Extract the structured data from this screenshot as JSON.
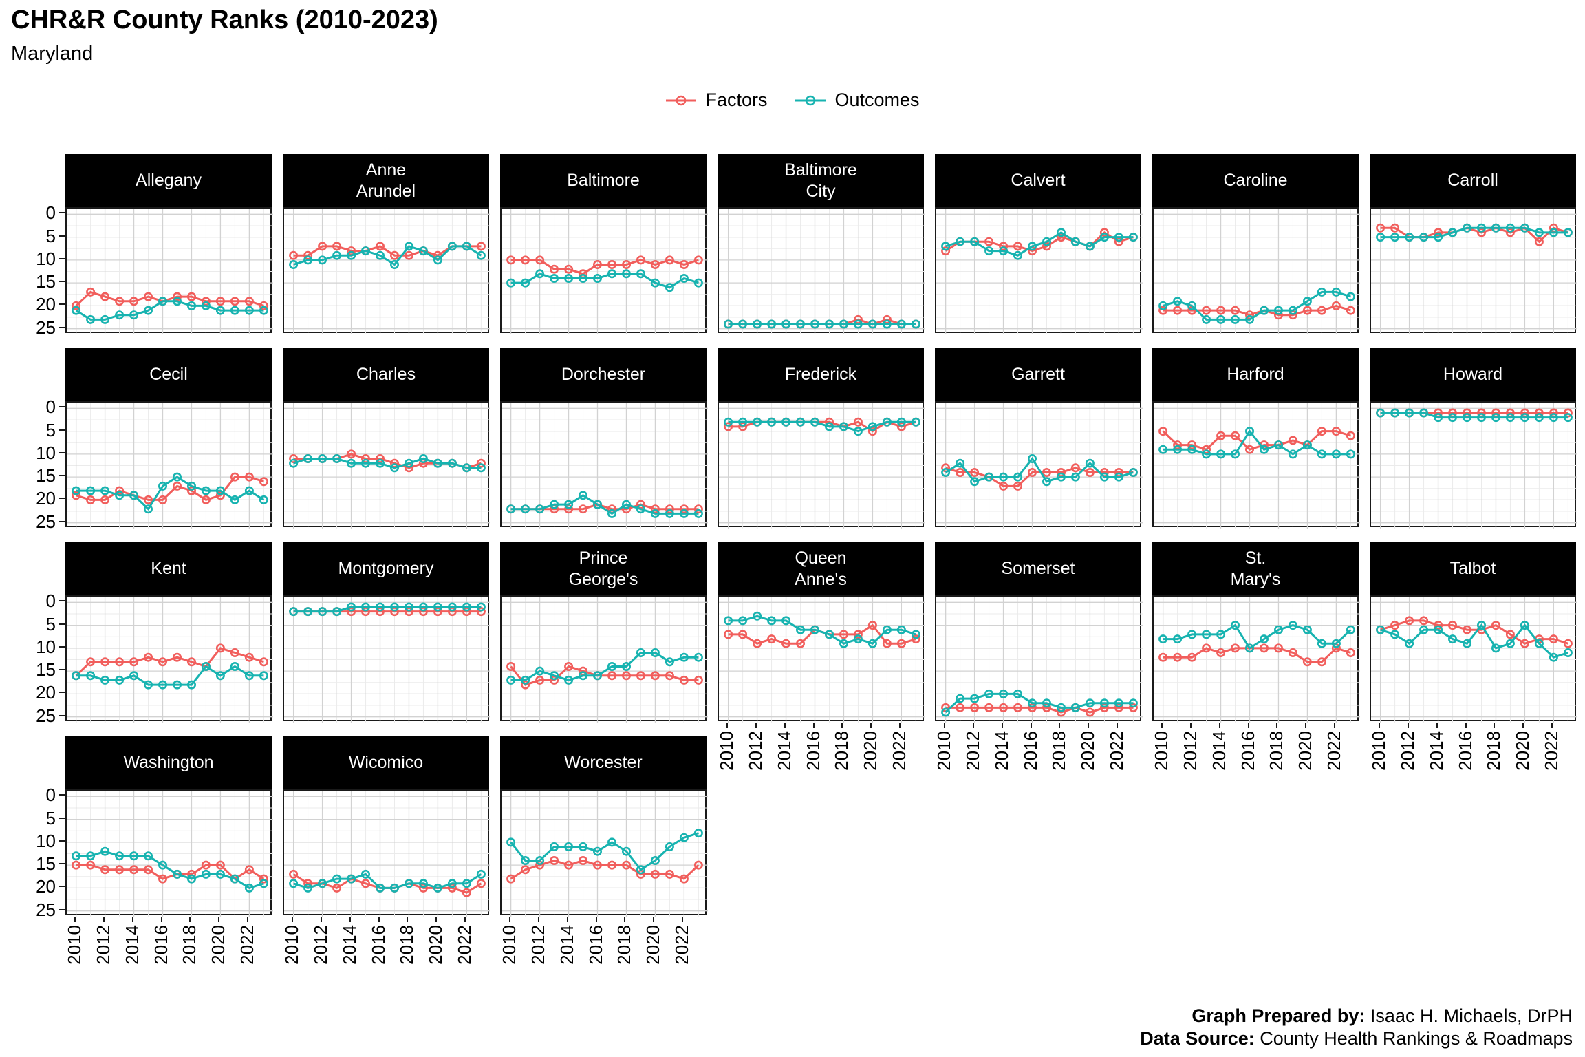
{
  "header": {
    "title": "CHR&R County Ranks (2010-2023)",
    "subtitle": "Maryland"
  },
  "legend": {
    "items": [
      {
        "label": "Factors",
        "color": "#F15E5C"
      },
      {
        "label": "Outcomes",
        "color": "#17B3B0"
      }
    ]
  },
  "footer": {
    "prepared_by_label": "Graph Prepared by:",
    "prepared_by_value": " Isaac H. Michaels, DrPH",
    "source_label": "Data Source:",
    "source_value": " County Health Rankings & Roadmaps"
  },
  "chart_data": {
    "type": "line",
    "title": "CHR&R County Ranks (2010-2023)",
    "subtitle": "Maryland",
    "x": [
      2010,
      2011,
      2012,
      2013,
      2014,
      2015,
      2016,
      2017,
      2018,
      2019,
      2020,
      2021,
      2022,
      2023
    ],
    "x_ticks": [
      2010,
      2012,
      2014,
      2016,
      2018,
      2020,
      2022
    ],
    "y_ticks": [
      0,
      5,
      10,
      15,
      20,
      25
    ],
    "ylim": [
      0,
      25
    ],
    "y_inverted_rank_axis": true,
    "grid": "on",
    "legend_position": "top",
    "series_names": [
      "Factors",
      "Outcomes"
    ],
    "colors": {
      "factors": "#F15E5C",
      "outcomes": "#17B3B0"
    },
    "panels": [
      {
        "county": "Allegany",
        "label_lines": [
          "Allegany"
        ],
        "factors": [
          20,
          17,
          18,
          19,
          19,
          18,
          19,
          18,
          18,
          19,
          19,
          19,
          19,
          20
        ],
        "outcomes": [
          21,
          23,
          23,
          22,
          22,
          21,
          19,
          19,
          20,
          20,
          21,
          21,
          21,
          21
        ]
      },
      {
        "county": "Anne Arundel",
        "label_lines": [
          "Anne",
          "Arundel"
        ],
        "factors": [
          9,
          9,
          7,
          7,
          8,
          8,
          7,
          9,
          9,
          8,
          9,
          7,
          7,
          7
        ],
        "outcomes": [
          11,
          10,
          10,
          9,
          9,
          8,
          9,
          11,
          7,
          8,
          10,
          7,
          7,
          9
        ]
      },
      {
        "county": "Baltimore",
        "label_lines": [
          "Baltimore"
        ],
        "factors": [
          10,
          10,
          10,
          12,
          12,
          13,
          11,
          11,
          11,
          10,
          11,
          10,
          11,
          10
        ],
        "outcomes": [
          15,
          15,
          13,
          14,
          14,
          14,
          14,
          13,
          13,
          13,
          15,
          16,
          14,
          15
        ]
      },
      {
        "county": "Baltimore City",
        "label_lines": [
          "Baltimore",
          "City"
        ],
        "factors": [
          24,
          24,
          24,
          24,
          24,
          24,
          24,
          24,
          24,
          23,
          24,
          23,
          24,
          24
        ],
        "outcomes": [
          24,
          24,
          24,
          24,
          24,
          24,
          24,
          24,
          24,
          24,
          24,
          24,
          24,
          24
        ]
      },
      {
        "county": "Calvert",
        "label_lines": [
          "Calvert"
        ],
        "factors": [
          8,
          6,
          6,
          6,
          7,
          7,
          8,
          7,
          5,
          6,
          7,
          4,
          6,
          5
        ],
        "outcomes": [
          7,
          6,
          6,
          8,
          8,
          9,
          7,
          6,
          4,
          6,
          7,
          5,
          5,
          5
        ]
      },
      {
        "county": "Caroline",
        "label_lines": [
          "Caroline"
        ],
        "factors": [
          21,
          21,
          21,
          21,
          21,
          21,
          22,
          21,
          22,
          22,
          21,
          21,
          20,
          21
        ],
        "outcomes": [
          20,
          19,
          20,
          23,
          23,
          23,
          23,
          21,
          21,
          21,
          19,
          17,
          17,
          18
        ]
      },
      {
        "county": "Carroll",
        "label_lines": [
          "Carroll"
        ],
        "factors": [
          3,
          3,
          5,
          5,
          4,
          4,
          3,
          4,
          3,
          4,
          3,
          6,
          3,
          4
        ],
        "outcomes": [
          5,
          5,
          5,
          5,
          5,
          4,
          3,
          3,
          3,
          3,
          3,
          4,
          4,
          4
        ]
      },
      {
        "county": "Cecil",
        "label_lines": [
          "Cecil"
        ],
        "factors": [
          19,
          20,
          20,
          18,
          19,
          20,
          20,
          17,
          18,
          20,
          19,
          15,
          15,
          16
        ],
        "outcomes": [
          18,
          18,
          18,
          19,
          19,
          22,
          17,
          15,
          17,
          18,
          18,
          20,
          18,
          20
        ]
      },
      {
        "county": "Charles",
        "label_lines": [
          "Charles"
        ],
        "factors": [
          11,
          11,
          11,
          11,
          10,
          11,
          11,
          12,
          13,
          12,
          12,
          12,
          13,
          12
        ],
        "outcomes": [
          12,
          11,
          11,
          11,
          12,
          12,
          12,
          13,
          12,
          11,
          12,
          12,
          13,
          13
        ]
      },
      {
        "county": "Dorchester",
        "label_lines": [
          "Dorchester"
        ],
        "factors": [
          22,
          22,
          22,
          22,
          22,
          22,
          21,
          22,
          22,
          21,
          22,
          22,
          22,
          22
        ],
        "outcomes": [
          22,
          22,
          22,
          21,
          21,
          19,
          21,
          23,
          21,
          22,
          23,
          23,
          23,
          23
        ]
      },
      {
        "county": "Frederick",
        "label_lines": [
          "Frederick"
        ],
        "factors": [
          4,
          4,
          3,
          3,
          3,
          3,
          3,
          3,
          4,
          3,
          5,
          3,
          4,
          3
        ],
        "outcomes": [
          3,
          3,
          3,
          3,
          3,
          3,
          3,
          4,
          4,
          5,
          4,
          3,
          3,
          3
        ]
      },
      {
        "county": "Garrett",
        "label_lines": [
          "Garrett"
        ],
        "factors": [
          13,
          14,
          14,
          15,
          17,
          17,
          14,
          14,
          14,
          13,
          14,
          14,
          14,
          14
        ],
        "outcomes": [
          14,
          12,
          16,
          15,
          15,
          15,
          11,
          16,
          15,
          15,
          12,
          15,
          15,
          14
        ]
      },
      {
        "county": "Harford",
        "label_lines": [
          "Harford"
        ],
        "factors": [
          5,
          8,
          8,
          9,
          6,
          6,
          9,
          8,
          8,
          7,
          8,
          5,
          5,
          6
        ],
        "outcomes": [
          9,
          9,
          9,
          10,
          10,
          10,
          5,
          9,
          8,
          10,
          8,
          10,
          10,
          10
        ]
      },
      {
        "county": "Howard",
        "label_lines": [
          "Howard"
        ],
        "factors": [
          1,
          1,
          1,
          1,
          1,
          1,
          1,
          1,
          1,
          1,
          1,
          1,
          1,
          1
        ],
        "outcomes": [
          1,
          1,
          1,
          1,
          2,
          2,
          2,
          2,
          2,
          2,
          2,
          2,
          2,
          2
        ]
      },
      {
        "county": "Kent",
        "label_lines": [
          "Kent"
        ],
        "factors": [
          16,
          13,
          13,
          13,
          13,
          12,
          13,
          12,
          13,
          14,
          10,
          11,
          12,
          13
        ],
        "outcomes": [
          16,
          16,
          17,
          17,
          16,
          18,
          18,
          18,
          18,
          14,
          16,
          14,
          16,
          16
        ]
      },
      {
        "county": "Montgomery",
        "label_lines": [
          "Montgomery"
        ],
        "factors": [
          2,
          2,
          2,
          2,
          2,
          2,
          2,
          2,
          2,
          2,
          2,
          2,
          2,
          2
        ],
        "outcomes": [
          2,
          2,
          2,
          2,
          1,
          1,
          1,
          1,
          1,
          1,
          1,
          1,
          1,
          1
        ]
      },
      {
        "county": "Prince George's",
        "label_lines": [
          "Prince",
          "George's"
        ],
        "factors": [
          14,
          18,
          17,
          17,
          14,
          15,
          16,
          16,
          16,
          16,
          16,
          16,
          17,
          17
        ],
        "outcomes": [
          17,
          17,
          15,
          16,
          17,
          16,
          16,
          14,
          14,
          11,
          11,
          13,
          12,
          12
        ]
      },
      {
        "county": "Queen Anne's",
        "label_lines": [
          "Queen",
          "Anne's"
        ],
        "factors": [
          7,
          7,
          9,
          8,
          9,
          9,
          6,
          7,
          7,
          7,
          5,
          9,
          9,
          8
        ],
        "outcomes": [
          4,
          4,
          3,
          4,
          4,
          6,
          6,
          7,
          9,
          8,
          9,
          6,
          6,
          7
        ]
      },
      {
        "county": "Somerset",
        "label_lines": [
          "Somerset"
        ],
        "factors": [
          23,
          23,
          23,
          23,
          23,
          23,
          23,
          23,
          24,
          23,
          24,
          23,
          23,
          23
        ],
        "outcomes": [
          24,
          21,
          21,
          20,
          20,
          20,
          22,
          22,
          23,
          23,
          22,
          22,
          22,
          22
        ]
      },
      {
        "county": "St. Mary's",
        "label_lines": [
          "St.",
          "Mary's"
        ],
        "factors": [
          12,
          12,
          12,
          10,
          11,
          10,
          10,
          10,
          10,
          11,
          13,
          13,
          10,
          11
        ],
        "outcomes": [
          8,
          8,
          7,
          7,
          7,
          5,
          10,
          8,
          6,
          5,
          6,
          9,
          9,
          6
        ]
      },
      {
        "county": "Talbot",
        "label_lines": [
          "Talbot"
        ],
        "factors": [
          6,
          5,
          4,
          4,
          5,
          5,
          6,
          6,
          5,
          7,
          9,
          8,
          8,
          9
        ],
        "outcomes": [
          6,
          7,
          9,
          6,
          6,
          8,
          9,
          5,
          10,
          9,
          5,
          9,
          12,
          11
        ]
      },
      {
        "county": "Washington",
        "label_lines": [
          "Washington"
        ],
        "factors": [
          15,
          15,
          16,
          16,
          16,
          16,
          18,
          17,
          17,
          15,
          15,
          18,
          16,
          18
        ],
        "outcomes": [
          13,
          13,
          12,
          13,
          13,
          13,
          15,
          17,
          18,
          17,
          17,
          18,
          20,
          19
        ]
      },
      {
        "county": "Wicomico",
        "label_lines": [
          "Wicomico"
        ],
        "factors": [
          17,
          19,
          19,
          20,
          18,
          19,
          20,
          20,
          19,
          20,
          20,
          20,
          21,
          19
        ],
        "outcomes": [
          19,
          20,
          19,
          18,
          18,
          17,
          20,
          20,
          19,
          19,
          20,
          19,
          19,
          17
        ]
      },
      {
        "county": "Worcester",
        "label_lines": [
          "Worcester"
        ],
        "factors": [
          18,
          16,
          15,
          14,
          15,
          14,
          15,
          15,
          15,
          17,
          17,
          17,
          18,
          15
        ],
        "outcomes": [
          10,
          14,
          14,
          11,
          11,
          11,
          12,
          10,
          12,
          16,
          14,
          11,
          9,
          8
        ]
      }
    ]
  }
}
